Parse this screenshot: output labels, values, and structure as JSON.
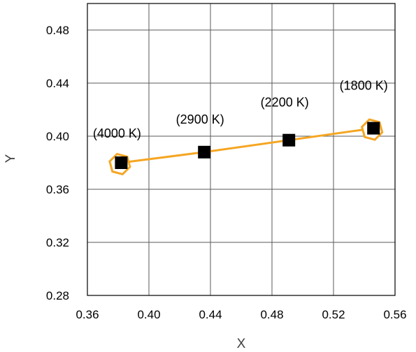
{
  "chart_data": {
    "type": "scatter",
    "title": "",
    "xlabel": "X",
    "ylabel": "Y",
    "xlim": [
      0.36,
      0.56
    ],
    "ylim": [
      0.28,
      0.5
    ],
    "x_ticks": [
      0.36,
      0.4,
      0.44,
      0.48,
      0.52,
      0.56
    ],
    "x_tick_labels": [
      "0.36",
      "0.40",
      "0.44",
      "0.48",
      "0.52",
      "0.56"
    ],
    "y_ticks": [
      0.28,
      0.32,
      0.36,
      0.4,
      0.44,
      0.48
    ],
    "y_tick_labels": [
      "0.28",
      "0.32",
      "0.36",
      "0.40",
      "0.44",
      "0.48"
    ],
    "grid": true,
    "legend": "none",
    "series": [
      {
        "marker": "square",
        "color": "#000000",
        "line_color": "#F5A623",
        "points": [
          {
            "x": 0.382,
            "y": 0.38,
            "label": "(4000 K)"
          },
          {
            "x": 0.436,
            "y": 0.388,
            "label": "(2900 K)"
          },
          {
            "x": 0.491,
            "y": 0.397,
            "label": "(2200 K)"
          },
          {
            "x": 0.546,
            "y": 0.406,
            "label": "(1800 K)"
          }
        ]
      }
    ],
    "annotations": [
      "(4000 K)",
      "(2900 K)",
      "(2200 K)",
      "(1800 K)"
    ]
  }
}
